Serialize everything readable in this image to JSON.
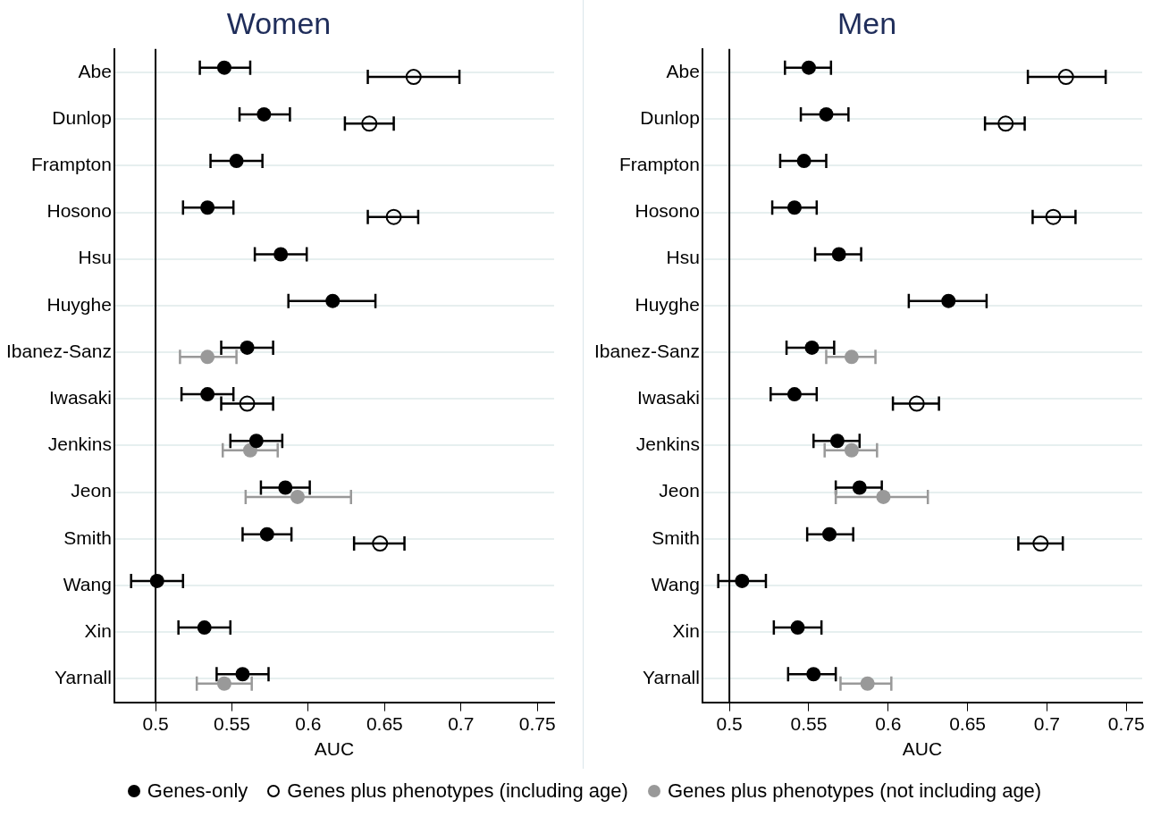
{
  "chart_data": [
    {
      "type": "scatter",
      "orientation": "horizontal",
      "title": "Women",
      "xlabel": "AUC",
      "categories": [
        "Abe",
        "Dunlop",
        "Frampton",
        "Hosono",
        "Hsu",
        "Huyghe",
        "Ibanez-Sanz",
        "Iwasaki",
        "Jenkins",
        "Jeon",
        "Smith",
        "Wang",
        "Xin",
        "Yarnall"
      ],
      "xlim": [
        0.473,
        0.761
      ],
      "xticks": [
        0.5,
        0.55,
        0.6,
        0.65,
        0.7,
        0.75
      ],
      "grid": "y",
      "marker": "circle",
      "legend": "bottom",
      "ref_lines": [
        {
          "axis": "x",
          "value": 0.5,
          "color": "#000000"
        }
      ],
      "series": [
        {
          "name": "Genes-only",
          "color": "#000000",
          "values": [
            0.545,
            0.571,
            0.553,
            0.534,
            0.582,
            0.616,
            0.56,
            0.534,
            0.566,
            0.585,
            0.573,
            0.501,
            0.532,
            0.557
          ],
          "errors": [
            [
              0.529,
              0.562
            ],
            [
              0.555,
              0.588
            ],
            [
              0.536,
              0.57
            ],
            [
              0.518,
              0.551
            ],
            [
              0.565,
              0.599
            ],
            [
              0.587,
              0.644
            ],
            [
              0.543,
              0.577
            ],
            [
              0.517,
              0.551
            ],
            [
              0.549,
              0.583
            ],
            [
              0.569,
              0.601
            ],
            [
              0.557,
              0.589
            ],
            [
              0.484,
              0.518
            ],
            [
              0.515,
              0.549
            ],
            [
              0.54,
              0.574
            ]
          ]
        },
        {
          "name": "Genes plus phenotypes (including age)",
          "color": "#000000",
          "marker": "circle_open",
          "values": [
            0.669,
            0.64,
            null,
            0.656,
            null,
            null,
            null,
            0.56,
            null,
            null,
            0.647,
            null,
            null,
            null
          ],
          "errors": [
            [
              0.639,
              0.699
            ],
            [
              0.624,
              0.656
            ],
            null,
            [
              0.639,
              0.672
            ],
            null,
            null,
            null,
            [
              0.543,
              0.577
            ],
            null,
            null,
            [
              0.63,
              0.663
            ],
            null,
            null,
            null
          ]
        },
        {
          "name": "Genes plus phenotypes (not including age)",
          "color": "#999999",
          "values": [
            null,
            null,
            null,
            null,
            null,
            null,
            0.534,
            null,
            0.562,
            0.593,
            null,
            null,
            null,
            0.545
          ],
          "errors": [
            null,
            null,
            null,
            null,
            null,
            null,
            [
              0.516,
              0.553
            ],
            null,
            [
              0.544,
              0.58
            ],
            [
              0.559,
              0.628
            ],
            null,
            null,
            null,
            [
              0.527,
              0.563
            ]
          ]
        }
      ]
    },
    {
      "type": "scatter",
      "orientation": "horizontal",
      "title": "Men",
      "xlabel": "AUC",
      "categories": [
        "Abe",
        "Dunlop",
        "Frampton",
        "Hosono",
        "Hsu",
        "Huyghe",
        "Ibanez-Sanz",
        "Iwasaki",
        "Jenkins",
        "Jeon",
        "Smith",
        "Wang",
        "Xin",
        "Yarnall"
      ],
      "xlim": [
        0.483,
        0.76
      ],
      "xticks": [
        0.5,
        0.55,
        0.6,
        0.65,
        0.7,
        0.75
      ],
      "grid": "y",
      "marker": "circle",
      "ref_lines": [
        {
          "axis": "x",
          "value": 0.5,
          "color": "#000000"
        }
      ],
      "series": [
        {
          "color": "#000000",
          "values": [
            0.55,
            0.561,
            0.547,
            0.541,
            0.569,
            0.638,
            0.552,
            0.541,
            0.568,
            0.582,
            0.563,
            0.508,
            0.543,
            0.553
          ],
          "errors": [
            [
              0.535,
              0.564
            ],
            [
              0.545,
              0.575
            ],
            [
              0.532,
              0.561
            ],
            [
              0.527,
              0.555
            ],
            [
              0.554,
              0.583
            ],
            [
              0.613,
              0.662
            ],
            [
              0.536,
              0.566
            ],
            [
              0.526,
              0.555
            ],
            [
              0.553,
              0.582
            ],
            [
              0.567,
              0.596
            ],
            [
              0.549,
              0.578
            ],
            [
              0.493,
              0.523
            ],
            [
              0.528,
              0.558
            ],
            [
              0.537,
              0.567
            ]
          ]
        },
        {
          "color": "#000000",
          "marker": "circle_open",
          "values": [
            0.712,
            0.674,
            null,
            0.704,
            null,
            null,
            null,
            0.618,
            null,
            null,
            0.696,
            null,
            null,
            null
          ],
          "errors": [
            [
              0.688,
              0.737
            ],
            [
              0.661,
              0.686
            ],
            null,
            [
              0.691,
              0.718
            ],
            null,
            null,
            null,
            [
              0.603,
              0.632
            ],
            null,
            null,
            [
              0.682,
              0.71
            ],
            null,
            null,
            null
          ]
        },
        {
          "color": "#999999",
          "values": [
            null,
            null,
            null,
            null,
            null,
            null,
            0.577,
            null,
            0.577,
            0.597,
            null,
            null,
            null,
            0.587
          ],
          "errors": [
            null,
            null,
            null,
            null,
            null,
            null,
            [
              0.561,
              0.592
            ],
            null,
            [
              0.56,
              0.593
            ],
            [
              0.567,
              0.625
            ],
            null,
            null,
            null,
            [
              0.57,
              0.602
            ]
          ]
        }
      ]
    }
  ]
}
